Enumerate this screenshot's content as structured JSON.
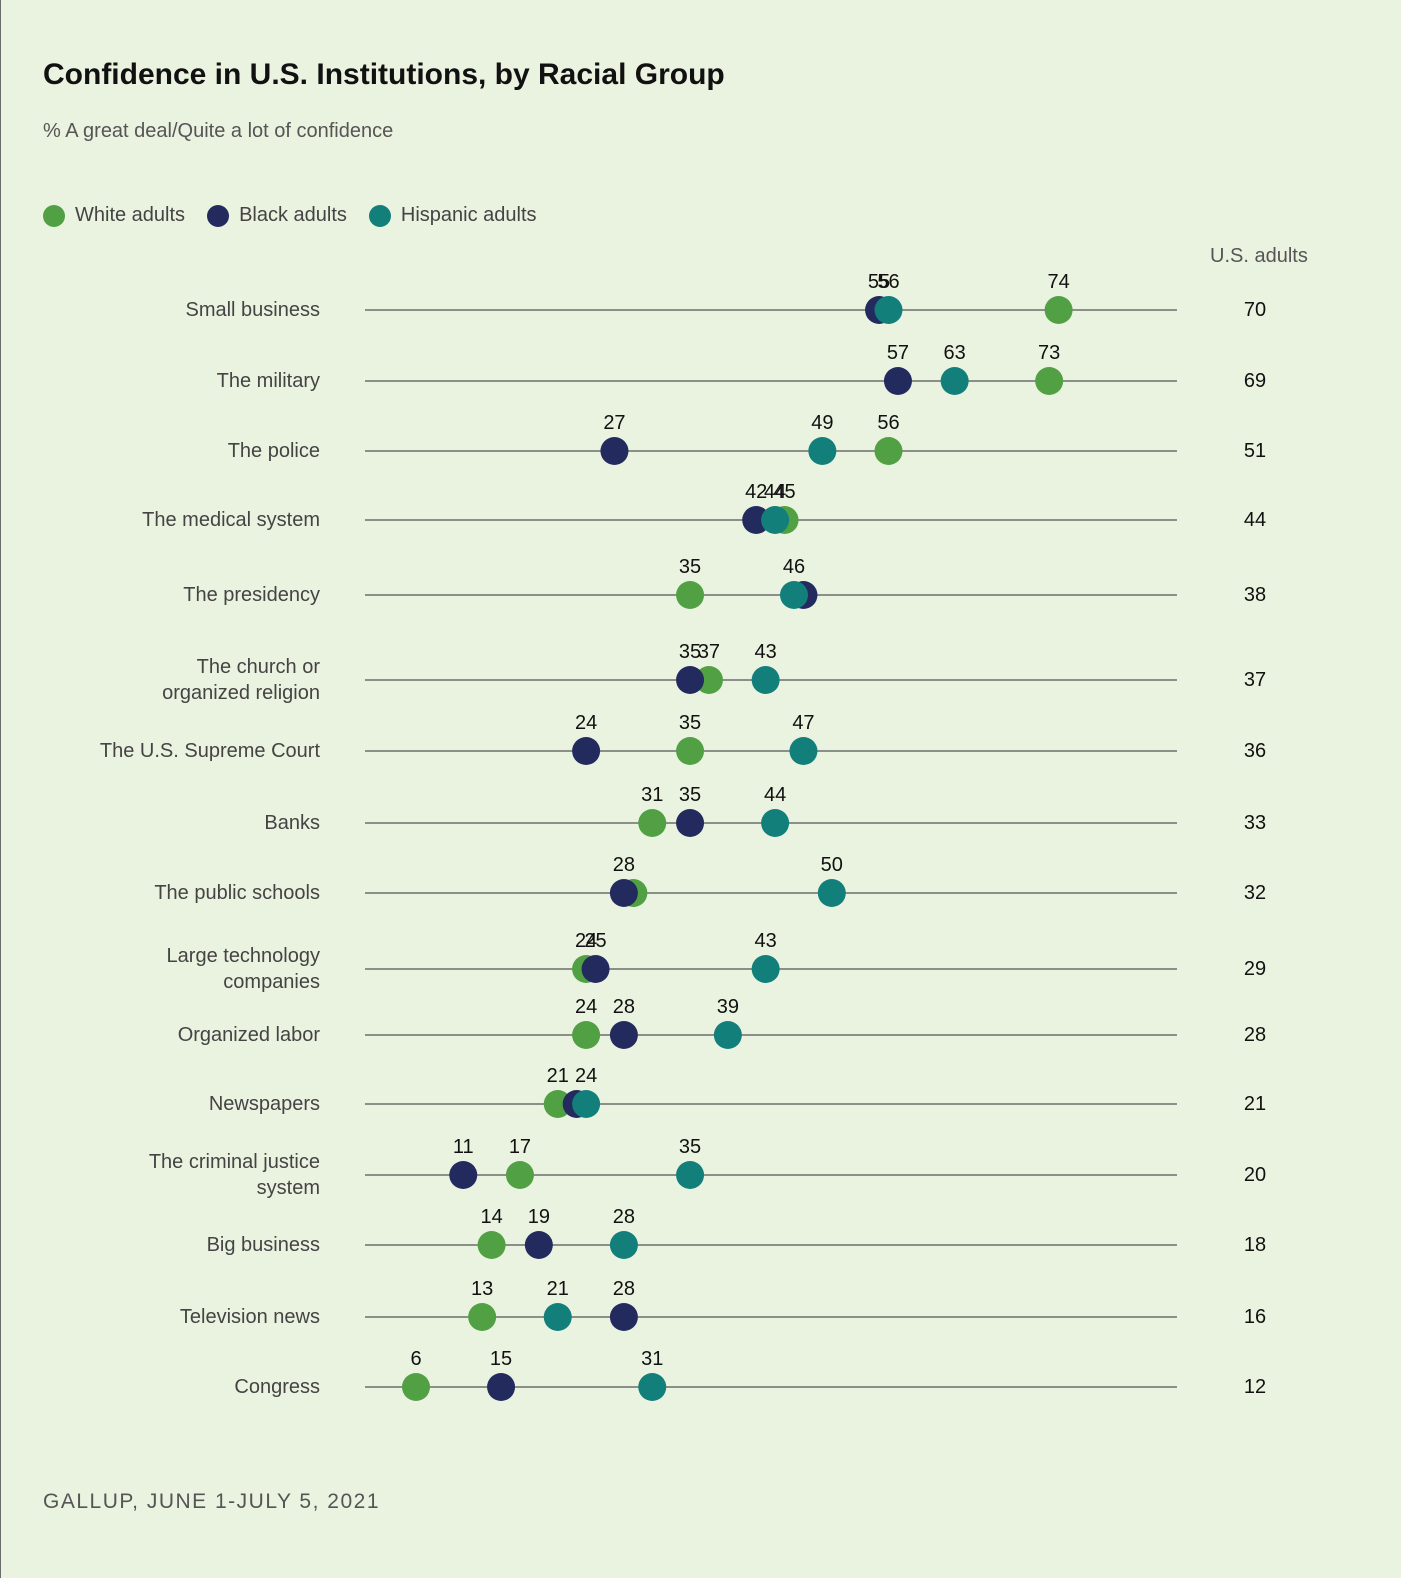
{
  "title": "Confidence in U.S. Institutions, by Racial Group",
  "subtitle": "% A great deal/Quite a lot of confidence",
  "us_column_header": "U.S. adults",
  "source": "GALLUP, JUNE 1-JULY 5, 2021",
  "chart_data": {
    "type": "scatter",
    "title": "Confidence in U.S. Institutions, by Racial Group",
    "subtitle": "% A great deal/Quite a lot of confidence",
    "xlim": [
      0,
      100
    ],
    "grid": false,
    "legend_position": "top-left",
    "categories": [
      [
        "Small business"
      ],
      [
        "The military"
      ],
      [
        "The police"
      ],
      [
        "The medical system"
      ],
      [
        "The presidency"
      ],
      [
        "The church or",
        "organized religion"
      ],
      [
        "The U.S. Supreme Court"
      ],
      [
        "Banks"
      ],
      [
        "The public schools"
      ],
      [
        "Large technology",
        "companies"
      ],
      [
        "Organized labor"
      ],
      [
        "Newspapers"
      ],
      [
        "The criminal justice",
        "system"
      ],
      [
        "Big business"
      ],
      [
        "Television news"
      ],
      [
        "Congress"
      ]
    ],
    "series": [
      {
        "name": "White adults",
        "color": "#52a044",
        "values": [
          74,
          73,
          56,
          45,
          35,
          37,
          35,
          31,
          29,
          24,
          24,
          21,
          17,
          14,
          13,
          6
        ]
      },
      {
        "name": "Black adults",
        "color": "#232b5e",
        "values": [
          55,
          57,
          27,
          42,
          47,
          35,
          24,
          35,
          28,
          25,
          28,
          23,
          11,
          19,
          28,
          15
        ]
      },
      {
        "name": "Hispanic adults",
        "color": "#127f7b",
        "values": [
          56,
          63,
          49,
          44,
          46,
          43,
          47,
          44,
          50,
          43,
          39,
          24,
          35,
          28,
          21,
          31
        ]
      }
    ],
    "point_labels": [
      [
        {
          "text": "55",
          "v": 55
        },
        {
          "text": "56",
          "v": 56
        },
        {
          "text": "74",
          "v": 74
        }
      ],
      [
        {
          "text": "57",
          "v": 57
        },
        {
          "text": "63",
          "v": 63
        },
        {
          "text": "73",
          "v": 73
        }
      ],
      [
        {
          "text": "27",
          "v": 27
        },
        {
          "text": "49",
          "v": 49
        },
        {
          "text": "56",
          "v": 56
        }
      ],
      [
        {
          "text": "42",
          "v": 42
        },
        {
          "text": "44",
          "v": 44
        },
        {
          "text": "45",
          "v": 45
        }
      ],
      [
        {
          "text": "35",
          "v": 35
        },
        {
          "text": "46",
          "v": 46
        }
      ],
      [
        {
          "text": "35",
          "v": 35
        },
        {
          "text": "37",
          "v": 37
        },
        {
          "text": "43",
          "v": 43
        }
      ],
      [
        {
          "text": "24",
          "v": 24
        },
        {
          "text": "35",
          "v": 35
        },
        {
          "text": "47",
          "v": 47
        }
      ],
      [
        {
          "text": "31",
          "v": 31
        },
        {
          "text": "35",
          "v": 35
        },
        {
          "text": "44",
          "v": 44
        }
      ],
      [
        {
          "text": "28",
          "v": 28
        },
        {
          "text": "50",
          "v": 50
        }
      ],
      [
        {
          "text": "24",
          "v": 24
        },
        {
          "text": "25",
          "v": 25
        },
        {
          "text": "43",
          "v": 43
        }
      ],
      [
        {
          "text": "24",
          "v": 24
        },
        {
          "text": "28",
          "v": 28
        },
        {
          "text": "39",
          "v": 39
        }
      ],
      [
        {
          "text": "21",
          "v": 21
        },
        {
          "text": "24",
          "v": 24
        }
      ],
      [
        {
          "text": "11",
          "v": 11
        },
        {
          "text": "17",
          "v": 17
        },
        {
          "text": "35",
          "v": 35
        }
      ],
      [
        {
          "text": "14",
          "v": 14
        },
        {
          "text": "19",
          "v": 19
        },
        {
          "text": "28",
          "v": 28
        }
      ],
      [
        {
          "text": "13",
          "v": 13
        },
        {
          "text": "21",
          "v": 21
        },
        {
          "text": "28",
          "v": 28
        }
      ],
      [
        {
          "text": "6",
          "v": 6
        },
        {
          "text": "15",
          "v": 15
        },
        {
          "text": "31",
          "v": 31
        }
      ]
    ],
    "us_adults": [
      70,
      69,
      51,
      44,
      38,
      37,
      36,
      33,
      32,
      29,
      28,
      21,
      20,
      18,
      16,
      12
    ]
  }
}
